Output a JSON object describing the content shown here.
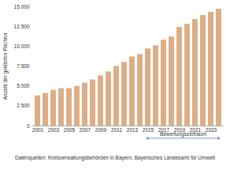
{
  "chart_data": {
    "type": "bar",
    "y_label": "Anzahl der geklärten Flächen",
    "caption": "Datenquellen: Kreisverwaltungsbehörden in Bayern, Bayerisches Landesamt für Umwelt",
    "x": [
      2001,
      2002,
      2003,
      2004,
      2005,
      2006,
      2007,
      2008,
      2009,
      2010,
      2011,
      2012,
      2013,
      2014,
      2015,
      2016,
      2017,
      2018,
      2019,
      2020,
      2021,
      2022,
      2023,
      2024
    ],
    "values": [
      3800,
      4100,
      4500,
      4700,
      4700,
      5000,
      5400,
      5800,
      6300,
      6800,
      7500,
      8000,
      8700,
      9000,
      9700,
      10100,
      10800,
      11200,
      12400,
      12800,
      13400,
      13900,
      14300,
      14700
    ],
    "color": "#dcae88",
    "xticks": [
      2001,
      2003,
      2005,
      2007,
      2009,
      2011,
      2013,
      2015,
      2017,
      2019,
      2021,
      2023
    ],
    "ylim": [
      0,
      15000
    ],
    "yticks": [
      0,
      {
        "value": 2500,
        "label": "2.500"
      },
      {
        "value": 5000,
        "label": "5.000"
      },
      {
        "value": 7500,
        "label": "7.500"
      },
      {
        "value": 10000,
        "label": "10.000"
      },
      {
        "value": 12500,
        "label": "12.500"
      },
      {
        "value": 15000,
        "label": "15.000"
      }
    ],
    "annotation": {
      "text": "Bewertungszeitraum",
      "x_range": [
        2015,
        2024
      ],
      "color": "#7f9fc8"
    },
    "grid": false
  }
}
